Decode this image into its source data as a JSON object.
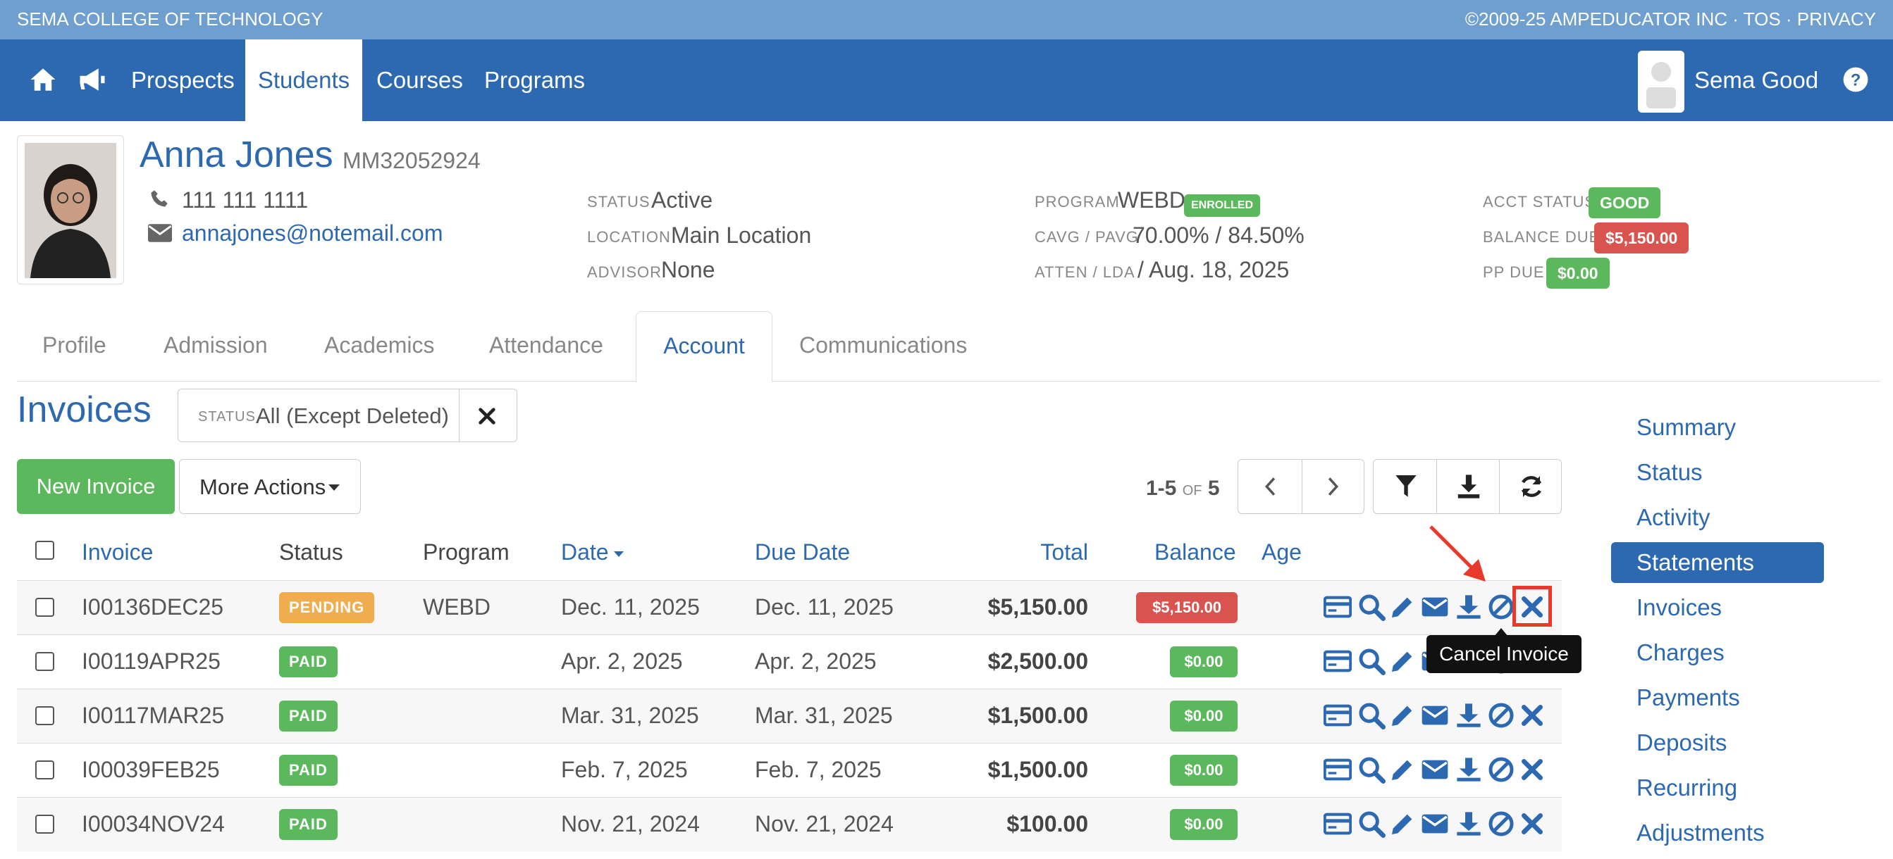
{
  "topbar": {
    "school": "SEMA COLLEGE OF TECHNOLOGY",
    "legal": "©2009-25 AMPEDUCATOR INC · TOS · PRIVACY"
  },
  "nav": {
    "icons": [
      "home-icon",
      "megaphone-icon"
    ],
    "items": [
      "Prospects",
      "Students",
      "Courses",
      "Programs"
    ],
    "active": "Students",
    "user": "Sema Good",
    "help_icon": "question-circle-icon"
  },
  "student": {
    "name": "Anna Jones",
    "id": "MM32052924",
    "phone": "111 111 1111",
    "email": "annajones@notemail.com",
    "status_label": "STATUS",
    "status": "Active",
    "location_label": "LOCATION",
    "location": "Main Location",
    "advisor_label": "ADVISOR",
    "advisor": "None",
    "program_label": "PROGRAM",
    "program": "WEBD",
    "program_badge": "ENROLLED",
    "avg_label": "CAVG / PAVG",
    "avg": "70.00% / 84.50%",
    "atten_label": "ATTEN / LDA",
    "atten": "/ Aug. 18, 2025",
    "acct_label": "ACCT STATUS",
    "acct": "GOOD",
    "balance_label": "BALANCE DUE",
    "balance": "$5,150.00",
    "pp_label": "PP DUE",
    "pp": "$0.00"
  },
  "tabs": [
    "Profile",
    "Admission",
    "Academics",
    "Attendance",
    "Account",
    "Communications"
  ],
  "active_tab": "Account",
  "invoices": {
    "title": "Invoices",
    "filter_label": "STATUS",
    "filter_value": "All (Except Deleted)",
    "new_button": "New Invoice",
    "more_actions": "More Actions",
    "pagination": {
      "range": "1-5",
      "of": "OF",
      "total": "5"
    },
    "columns": [
      "Invoice",
      "Status",
      "Program",
      "Date",
      "Due Date",
      "Total",
      "Balance",
      "Age"
    ],
    "rows": [
      {
        "invoice": "I00136DEC25",
        "status": "PENDING",
        "program": "WEBD",
        "date": "Dec. 11, 2025",
        "due": "Dec. 11, 2025",
        "total": "$5,150.00",
        "balance": "$5,150.00"
      },
      {
        "invoice": "I00119APR25",
        "status": "PAID",
        "program": "",
        "date": "Apr. 2, 2025",
        "due": "Apr. 2, 2025",
        "total": "$2,500.00",
        "balance": "$0.00"
      },
      {
        "invoice": "I00117MAR25",
        "status": "PAID",
        "program": "",
        "date": "Mar. 31, 2025",
        "due": "Mar. 31, 2025",
        "total": "$1,500.00",
        "balance": "$0.00"
      },
      {
        "invoice": "I00039FEB25",
        "status": "PAID",
        "program": "",
        "date": "Feb. 7, 2025",
        "due": "Feb. 7, 2025",
        "total": "$1,500.00",
        "balance": "$0.00"
      },
      {
        "invoice": "I00034NOV24",
        "status": "PAID",
        "program": "",
        "date": "Nov. 21, 2024",
        "due": "Nov. 21, 2024",
        "total": "$100.00",
        "balance": "$0.00"
      }
    ],
    "tooltip": "Cancel Invoice"
  },
  "sidebar": [
    "Summary",
    "Status",
    "Activity",
    "Statements",
    "Invoices",
    "Charges",
    "Payments",
    "Deposits",
    "Recurring",
    "Adjustments"
  ],
  "sidebar_active": "Statements",
  "colors": {
    "primary": "#2d69b1",
    "topstrip": "#6f9fcf",
    "green": "#5cb85c",
    "red": "#d9534f",
    "orange": "#f0ad4e",
    "annotation": "#e8392b"
  }
}
